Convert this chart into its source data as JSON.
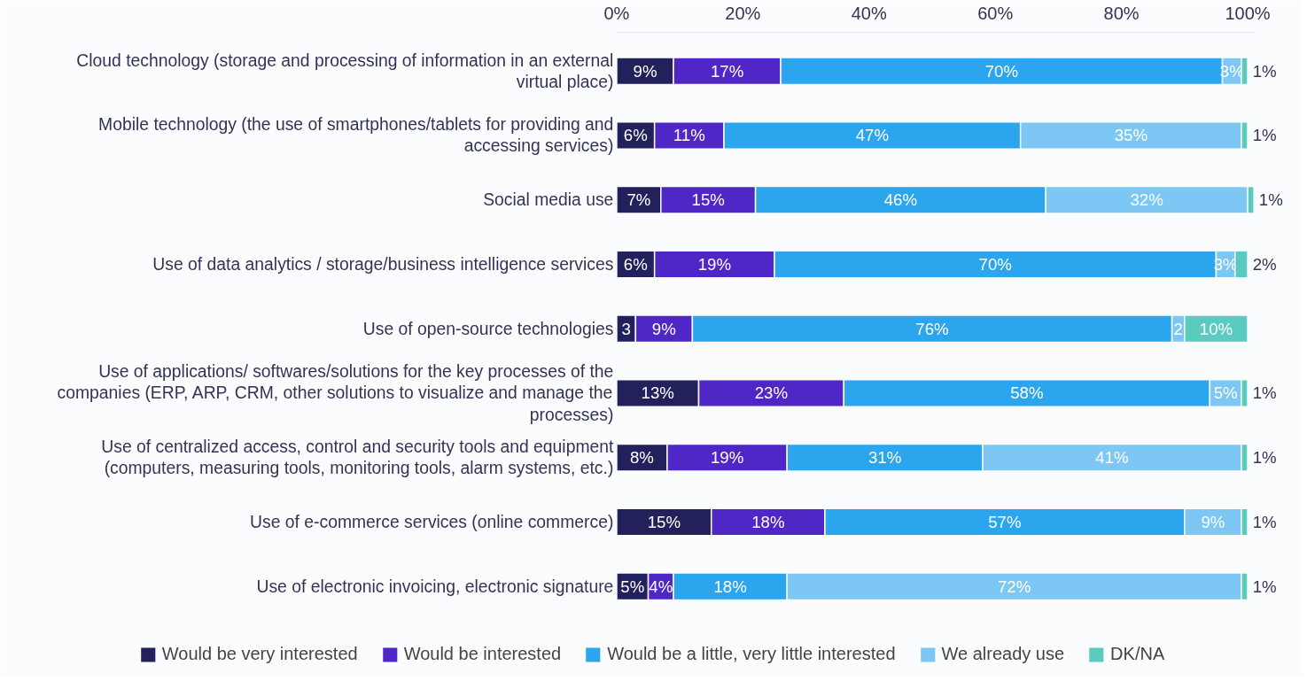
{
  "chart_data": {
    "type": "bar",
    "orientation": "horizontal",
    "stacked": true,
    "categories": [
      "Cloud technology (storage and processing of information in an external virtual place)",
      "Mobile technology (the use of smartphones/tablets for providing and accessing services)",
      "Social media use",
      "Use of data analytics / storage/business intelligence services",
      "Use of open-source technologies",
      "Use of applications/ softwares/solutions for the key processes of the companies (ERP, ARP, CRM, other solutions to visualize and manage the processes)",
      "Use of centralized access, control and security tools and equipment (computers, measuring tools, monitoring tools, alarm systems, etc.)",
      "Use of e-commerce services (online commerce)",
      "Use of electronic invoicing, electronic signature"
    ],
    "series": [
      {
        "name": "Would be very interested",
        "color": "#23215b",
        "values": [
          9,
          6,
          7,
          6,
          3,
          13,
          8,
          15,
          5
        ],
        "value_labels": [
          "9%",
          "6%",
          "7%",
          "6%",
          "3",
          "13%",
          "8%",
          "15%",
          "5%"
        ]
      },
      {
        "name": "Would be interested",
        "color": "#4e27c6",
        "values": [
          17,
          11,
          15,
          19,
          9,
          23,
          19,
          18,
          4
        ],
        "value_labels": [
          "17%",
          "11%",
          "15%",
          "19%",
          "9%",
          "23%",
          "19%",
          "18%",
          "4%"
        ]
      },
      {
        "name": "Would be a little, very little interested",
        "color": "#2ba5ee",
        "values": [
          70,
          47,
          46,
          70,
          76,
          58,
          31,
          57,
          18
        ],
        "value_labels": [
          "70%",
          "47%",
          "46%",
          "70%",
          "76%",
          "58%",
          "31%",
          "57%",
          "18%"
        ]
      },
      {
        "name": "We already use",
        "color": "#7dc7f4",
        "values": [
          3,
          35,
          32,
          3,
          2,
          5,
          41,
          9,
          72
        ],
        "value_labels": [
          "3%",
          "35%",
          "32%",
          "3%",
          "2",
          "5%",
          "41%",
          "9%",
          "72%"
        ]
      },
      {
        "name": "DK/NA",
        "color": "#5ccbbf",
        "values": [
          1,
          1,
          1,
          2,
          10,
          1,
          1,
          1,
          1
        ],
        "value_labels": [
          "1%",
          "1%",
          "1%",
          "2%",
          "10%",
          "1%",
          "1%",
          "1%",
          "1%"
        ]
      }
    ],
    "xlim": [
      0,
      101
    ],
    "xticks": [
      {
        "value": 0,
        "label": "0%"
      },
      {
        "value": 20,
        "label": "20%"
      },
      {
        "value": 40,
        "label": "40%"
      },
      {
        "value": 60,
        "label": "60%"
      },
      {
        "value": 80,
        "label": "80%"
      },
      {
        "value": 100,
        "label": "100%"
      }
    ],
    "grid": false,
    "legend": "bottom"
  }
}
